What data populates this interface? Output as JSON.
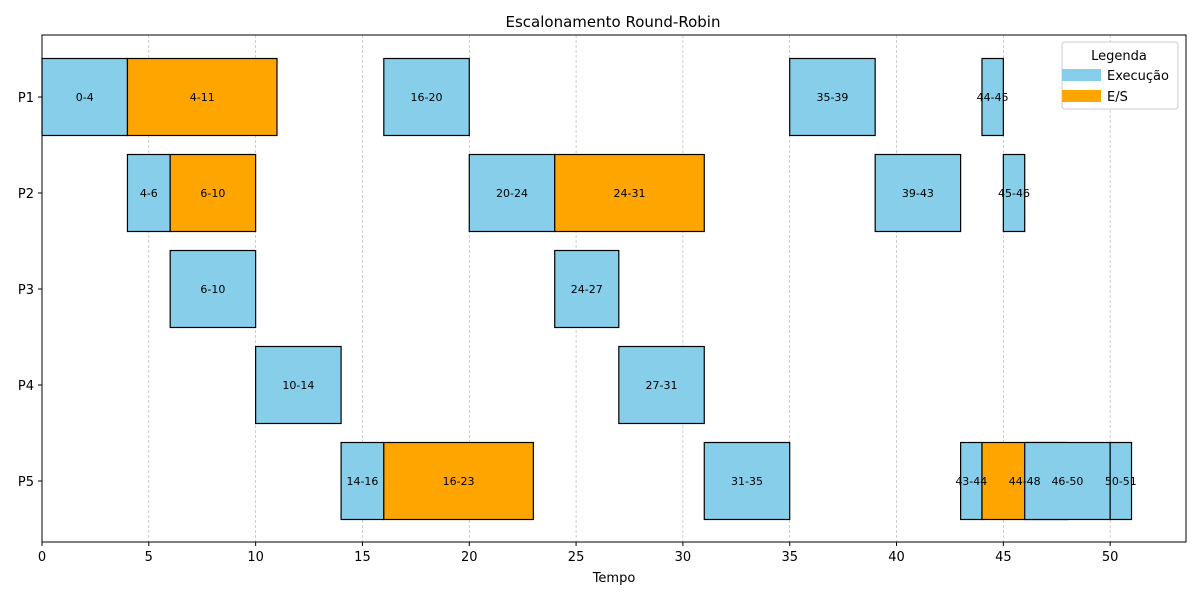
{
  "chart_data": {
    "type": "gantt",
    "title": "Escalonamento Round-Robin",
    "xlabel": "Tempo",
    "ylabel": "",
    "xlim": [
      0,
      53.55
    ],
    "xticks": [
      0,
      5,
      10,
      15,
      20,
      25,
      30,
      35,
      40,
      45,
      50
    ],
    "grid": "vertical dashed",
    "processes": [
      "P1",
      "P2",
      "P3",
      "P4",
      "P5"
    ],
    "legend": {
      "title": "Legenda",
      "placement": "top-right",
      "entries": [
        {
          "key": "exec",
          "label": "Execução",
          "color": "#87CEEB"
        },
        {
          "key": "io",
          "label": "E/S",
          "color": "#FFA500"
        }
      ]
    },
    "tasks": [
      {
        "process": "P1",
        "type": "exec",
        "start": 0,
        "end": 4,
        "label": "0-4"
      },
      {
        "process": "P1",
        "type": "io",
        "start": 4,
        "end": 11,
        "label": "4-11"
      },
      {
        "process": "P1",
        "type": "exec",
        "start": 16,
        "end": 20,
        "label": "16-20"
      },
      {
        "process": "P1",
        "type": "exec",
        "start": 35,
        "end": 39,
        "label": "35-39"
      },
      {
        "process": "P1",
        "type": "exec",
        "start": 44,
        "end": 45,
        "label": "44-45"
      },
      {
        "process": "P2",
        "type": "exec",
        "start": 4,
        "end": 6,
        "label": "4-6"
      },
      {
        "process": "P2",
        "type": "io",
        "start": 6,
        "end": 10,
        "label": "6-10"
      },
      {
        "process": "P2",
        "type": "exec",
        "start": 20,
        "end": 24,
        "label": "20-24"
      },
      {
        "process": "P2",
        "type": "io",
        "start": 24,
        "end": 31,
        "label": "24-31"
      },
      {
        "process": "P2",
        "type": "exec",
        "start": 39,
        "end": 43,
        "label": "39-43"
      },
      {
        "process": "P2",
        "type": "exec",
        "start": 45,
        "end": 46,
        "label": "45-46"
      },
      {
        "process": "P3",
        "type": "exec",
        "start": 6,
        "end": 10,
        "label": "6-10"
      },
      {
        "process": "P3",
        "type": "exec",
        "start": 24,
        "end": 27,
        "label": "24-27"
      },
      {
        "process": "P4",
        "type": "exec",
        "start": 10,
        "end": 14,
        "label": "10-14"
      },
      {
        "process": "P4",
        "type": "exec",
        "start": 27,
        "end": 31,
        "label": "27-31"
      },
      {
        "process": "P5",
        "type": "exec",
        "start": 14,
        "end": 16,
        "label": "14-16"
      },
      {
        "process": "P5",
        "type": "io",
        "start": 16,
        "end": 23,
        "label": "16-23"
      },
      {
        "process": "P5",
        "type": "exec",
        "start": 31,
        "end": 35,
        "label": "31-35"
      },
      {
        "process": "P5",
        "type": "exec",
        "start": 43,
        "end": 44,
        "label": "43-44"
      },
      {
        "process": "P5",
        "type": "io",
        "start": 44,
        "end": 48,
        "label": "44-48"
      },
      {
        "process": "P5",
        "type": "exec",
        "start": 46,
        "end": 50,
        "label": "46-50"
      },
      {
        "process": "P5",
        "type": "exec",
        "start": 50,
        "end": 51,
        "label": "50-51"
      }
    ]
  }
}
